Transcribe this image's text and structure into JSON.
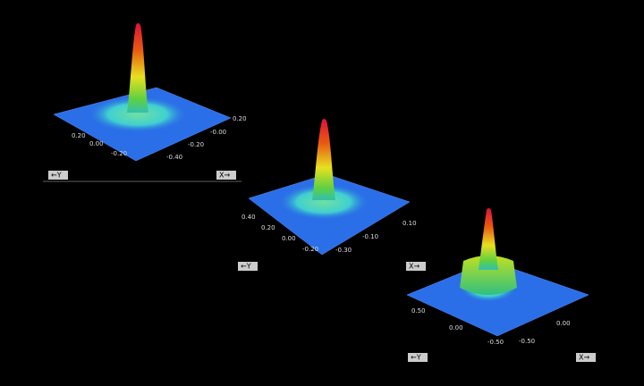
{
  "plots": [
    {
      "y_axis_label": "←Y",
      "x_axis_label": "X→",
      "y_ticks": [
        "0.20",
        "0.00",
        "-0.20"
      ],
      "x_ticks": [
        "-0.40",
        "-0.20",
        "-0.00",
        "0.20"
      ]
    },
    {
      "y_axis_label": "←Y",
      "x_axis_label": "X→",
      "y_ticks": [
        "0.40",
        "0.20",
        "0.00",
        "-0.20"
      ],
      "x_ticks": [
        "-0.30",
        "-0.10",
        "0.10"
      ]
    },
    {
      "y_axis_label": "←Y",
      "x_axis_label": "X→",
      "y_ticks": [
        "0.50",
        "0.00",
        "-0.50"
      ],
      "x_ticks": [
        "-0.50",
        "0.00"
      ]
    }
  ]
}
